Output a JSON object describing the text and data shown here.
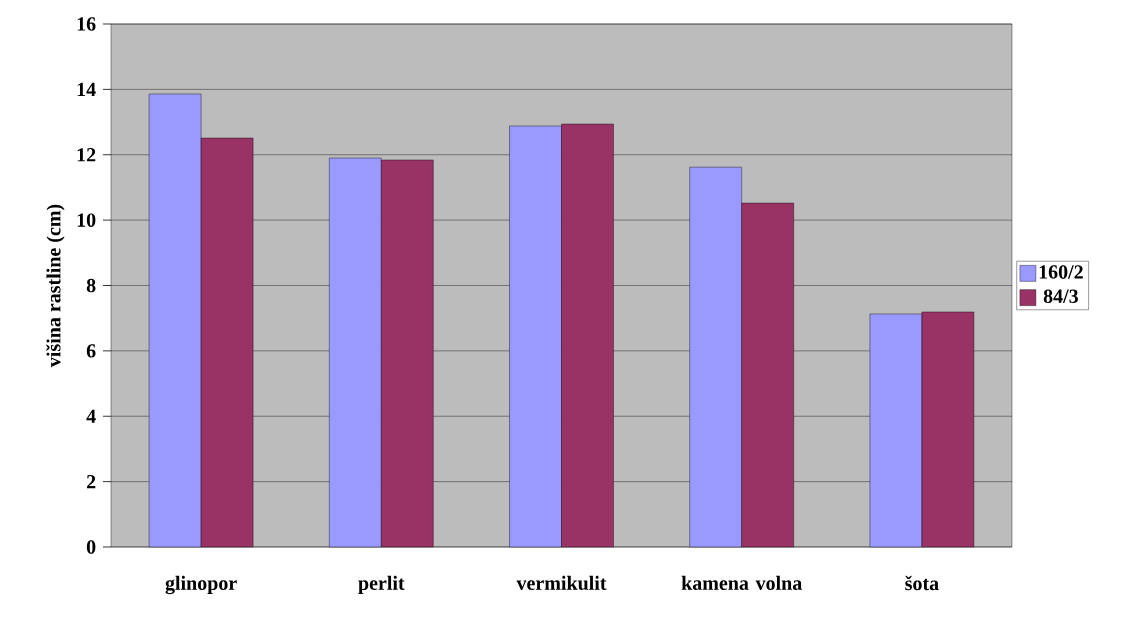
{
  "chart_data": {
    "type": "bar",
    "ylabel": "višina rastline (cm)",
    "categories": [
      "glinopor",
      "perlit",
      "vermikulit",
      "kamena volna",
      "šota"
    ],
    "series": [
      {
        "name": "160/2",
        "color": "#9999ff",
        "values": [
          13.86,
          11.9,
          12.88,
          11.62,
          7.13
        ]
      },
      {
        "name": "84/3",
        "color": "#993366",
        "values": [
          12.51,
          11.84,
          12.94,
          10.52,
          7.19
        ]
      }
    ],
    "ylim": [
      0,
      16
    ],
    "yticks": [
      0,
      2,
      4,
      6,
      8,
      10,
      12,
      14,
      16
    ],
    "grid": "y",
    "legend": "right"
  }
}
